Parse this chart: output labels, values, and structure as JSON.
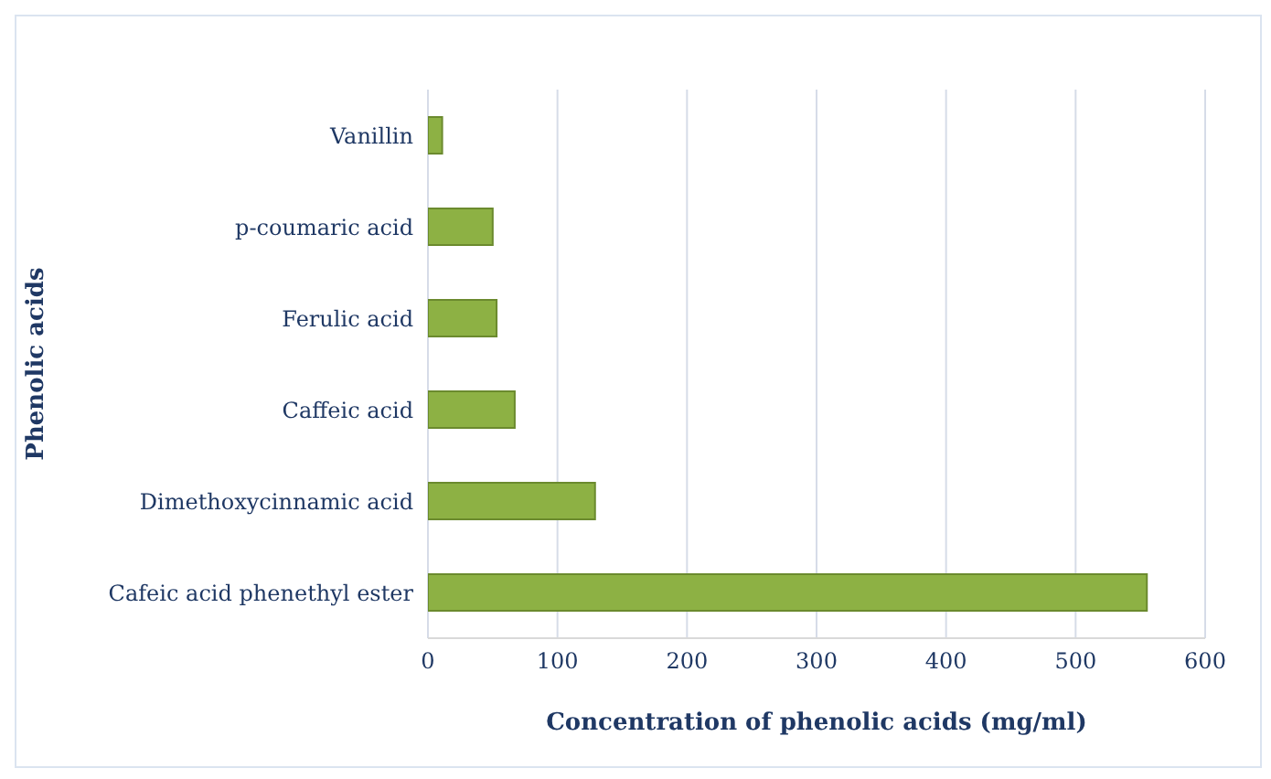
{
  "chart_data": {
    "type": "bar",
    "orientation": "horizontal",
    "xlabel": "Concentration of phenolic acids (mg/ml)",
    "ylabel": "Phenolic acids",
    "categories": [
      "Vanillin",
      "p-coumaric acid",
      "Ferulic acid",
      "Caffeic acid",
      "Dimethoxycinnamic acid",
      "Cafeic acid phenethyl ester"
    ],
    "values": [
      11,
      50,
      53,
      67,
      129,
      555
    ],
    "color": "#8db144",
    "xlim": [
      0,
      600
    ],
    "xticks": [
      0,
      100,
      200,
      300,
      400,
      500,
      600
    ],
    "grid": "x"
  }
}
